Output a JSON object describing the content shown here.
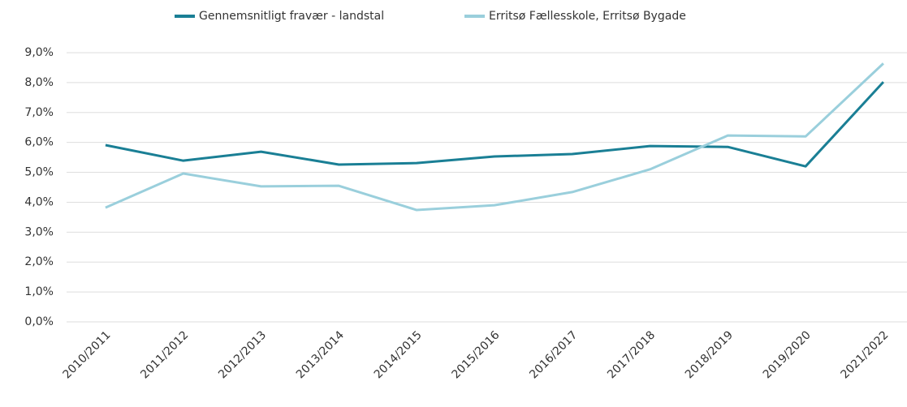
{
  "chart_data": {
    "type": "line",
    "categories": [
      "2010/2011",
      "2011/2012",
      "2012/2013",
      "2013/2014",
      "2014/2015",
      "2015/2016",
      "2016/2017",
      "2017/2018",
      "2018/2019",
      "2019/2020",
      "2021/2022"
    ],
    "series": [
      {
        "name": "Gennemsnitligt fravær - landstal",
        "color": "#1a7f95",
        "values": [
          5.91,
          5.39,
          5.69,
          5.26,
          5.31,
          5.53,
          5.61,
          5.88,
          5.85,
          5.2,
          8.02
        ]
      },
      {
        "name": "Erritsø Fællesskole, Erritsø Bygade",
        "color": "#9acfdc",
        "values": [
          3.82,
          4.96,
          4.53,
          4.55,
          3.74,
          3.9,
          4.34,
          5.1,
          6.23,
          6.2,
          8.64
        ]
      }
    ],
    "ylim": [
      0,
      9
    ],
    "yticks": [
      {
        "value": 0,
        "label": "0,0%"
      },
      {
        "value": 1,
        "label": "1,0%"
      },
      {
        "value": 2,
        "label": "2,0%"
      },
      {
        "value": 3,
        "label": "3,0%"
      },
      {
        "value": 4,
        "label": "4,0%"
      },
      {
        "value": 5,
        "label": "5,0%"
      },
      {
        "value": 6,
        "label": "6,0%"
      },
      {
        "value": 7,
        "label": "7,0%"
      },
      {
        "value": 8,
        "label": "8,0%"
      },
      {
        "value": 9,
        "label": "9,0%"
      }
    ],
    "grid": true,
    "legend": "top"
  }
}
